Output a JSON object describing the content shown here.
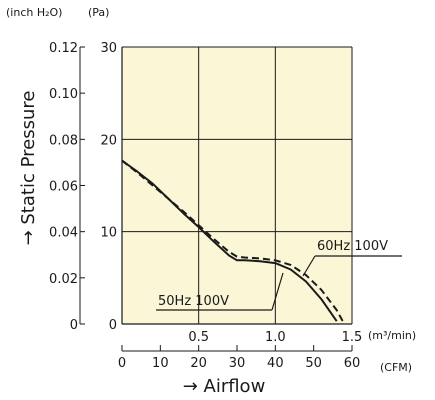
{
  "chart_data": {
    "type": "line",
    "title": "",
    "unit_labels": {
      "inchH2O": "(inch H₂O)",
      "pa": "(Pa)",
      "m3min": "(m³/min)",
      "cfm": "(CFM)"
    },
    "ylabel": "→ Static Pressure",
    "xlabel": "→ Airflow",
    "colors": {
      "plot_bg": "#faf6d6",
      "grid": "#1a1a1a",
      "curve": "#1a1a1a"
    },
    "grid": true,
    "x_m3min": {
      "range": [
        0,
        1.5
      ],
      "ticks": [
        0.5,
        1.0,
        1.5
      ],
      "tick_labels": [
        "0.5",
        "1.0",
        "1.5"
      ]
    },
    "y_pa": {
      "range": [
        0,
        30
      ],
      "ticks": [
        0,
        10,
        20,
        30
      ],
      "tick_labels": [
        "0",
        "10",
        "20",
        "30"
      ]
    },
    "y_inchH2O": {
      "range": [
        0,
        0.12
      ],
      "ticks": [
        0,
        0.02,
        0.04,
        0.06,
        0.08,
        0.1,
        0.12
      ],
      "tick_labels": [
        "0",
        "0.02",
        "0.04",
        "0.06",
        "0.08",
        "0.10",
        "0.12"
      ]
    },
    "x_cfm": {
      "range": [
        0,
        60
      ],
      "ticks": [
        0,
        10,
        20,
        30,
        40,
        50,
        60
      ],
      "tick_labels": [
        "0",
        "10",
        "20",
        "30",
        "40",
        "50",
        "60"
      ]
    },
    "series": [
      {
        "name": "50Hz 100V",
        "style": "solid",
        "x": [
          0,
          0.1,
          0.2,
          0.3,
          0.4,
          0.5,
          0.6,
          0.7,
          0.75,
          0.8,
          0.9,
          1.0,
          1.1,
          1.2,
          1.3,
          1.4,
          1.5
        ],
        "y": [
          17.7,
          16.5,
          15.2,
          13.6,
          12.0,
          10.5,
          8.9,
          7.4,
          6.9,
          6.9,
          6.8,
          6.6,
          5.9,
          4.6,
          2.7,
          0.3,
          null
        ]
      },
      {
        "name": "60Hz 100V",
        "style": "dashed",
        "x": [
          0,
          0.1,
          0.2,
          0.3,
          0.4,
          0.5,
          0.6,
          0.7,
          0.75,
          0.8,
          0.9,
          1.0,
          1.1,
          1.2,
          1.3,
          1.4,
          1.45,
          1.5
        ],
        "y": [
          17.7,
          16.4,
          15.0,
          13.6,
          12.2,
          10.7,
          9.2,
          7.8,
          7.3,
          7.2,
          7.1,
          6.9,
          6.4,
          5.3,
          3.7,
          1.5,
          0,
          null
        ]
      }
    ]
  }
}
